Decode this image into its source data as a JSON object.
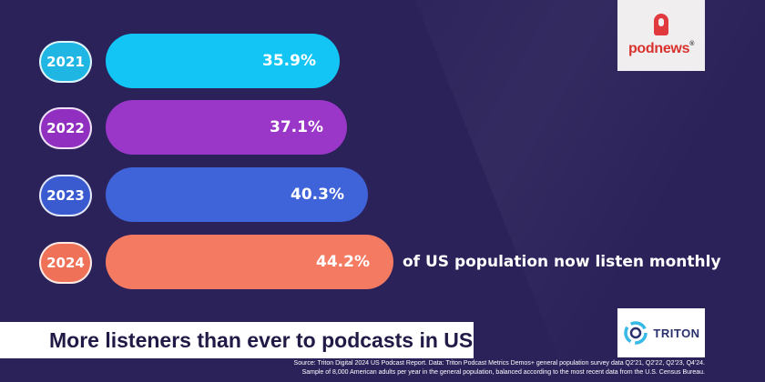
{
  "chart_data": {
    "type": "bar",
    "orientation": "horizontal",
    "title": "More listeners than ever to podcasts in US",
    "categories": [
      "2021",
      "2022",
      "2023",
      "2024"
    ],
    "values": [
      35.9,
      37.1,
      40.3,
      44.2
    ],
    "value_labels": [
      "35.9%",
      "37.1%",
      "40.3%",
      "44.2%"
    ],
    "bar_colors": [
      "#12c5f4",
      "#9a36c8",
      "#3f63d8",
      "#f47a62"
    ],
    "pill_colors": [
      "#1fb6e4",
      "#9130c0",
      "#3a5bd0",
      "#ef7158"
    ],
    "annotation": "of US population now listen monthly"
  },
  "brand": {
    "podnews": "podnews",
    "registered": "®",
    "triton": "TRITON"
  },
  "source_lines": [
    "Source: Triton Digital 2024 US Podcast Report. Data: Triton Podcast Metrics Demos+ general population survey data Q2'21, Q2'22, Q2'23, Q4'24.",
    "Sample of 8,000 American adults per year in the general population, balanced according to the most recent data from the U.S. Census Bureau."
  ],
  "colors": {
    "background": "#2b225a",
    "accent": "#e03a3e"
  }
}
